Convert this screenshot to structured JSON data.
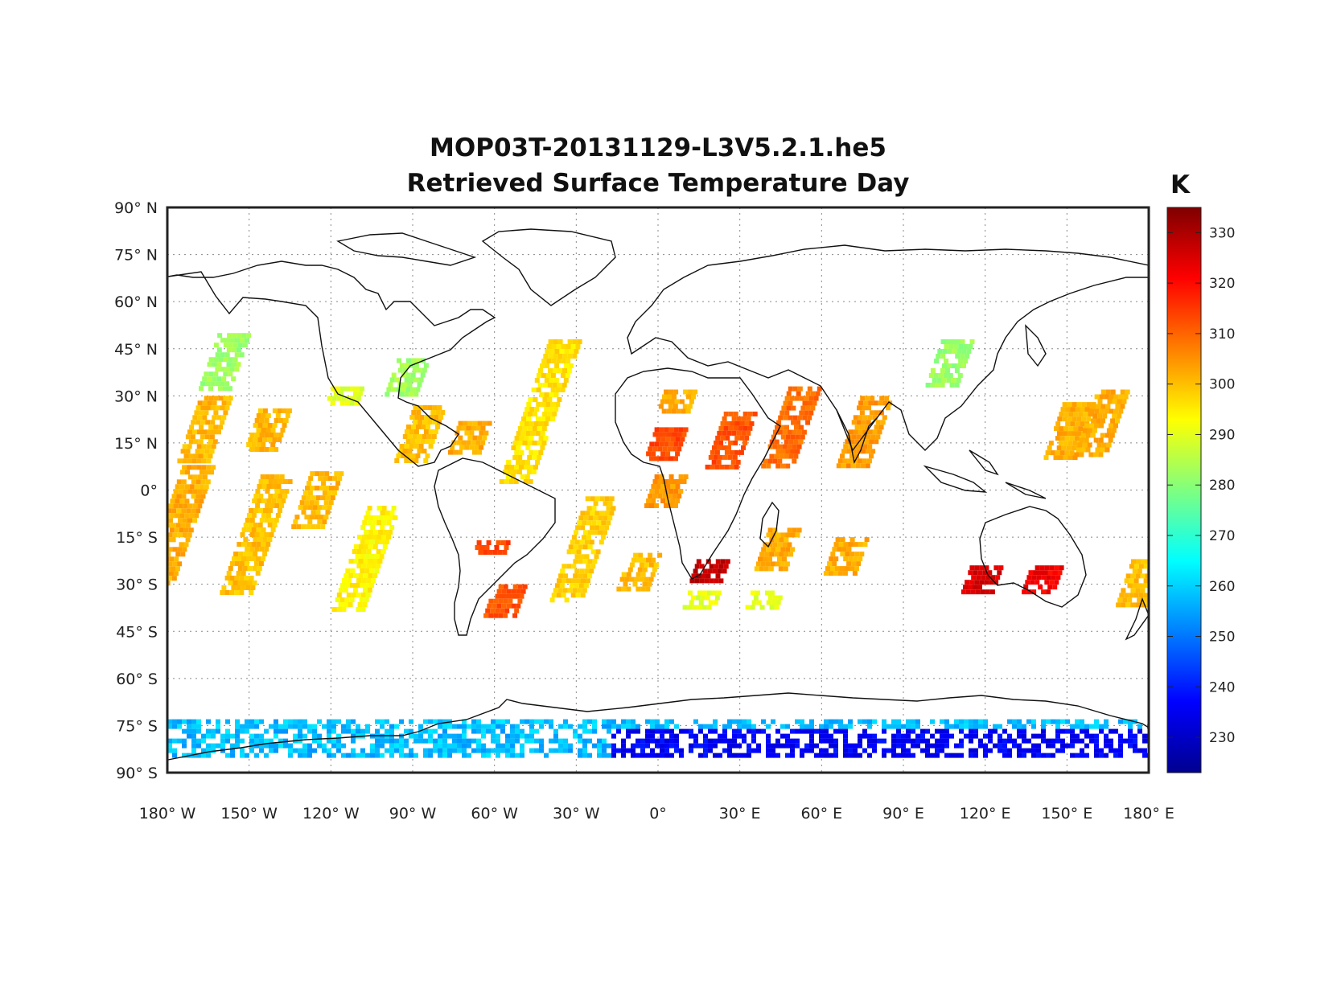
{
  "title": "MOP03T-20131129-L3V5.2.1.he5",
  "subtitle": "Retrieved Surface Temperature Day",
  "colorbar": {
    "unit": "K",
    "min": 223,
    "max": 335,
    "ticks": [
      "230",
      "240",
      "250",
      "260",
      "270",
      "280",
      "290",
      "300",
      "310",
      "320",
      "330"
    ],
    "colormap": "jet"
  },
  "chart_data": {
    "type": "heatmap",
    "projection": "equirectangular",
    "lon_range": [
      -180,
      180
    ],
    "lat_range": [
      -90,
      90
    ],
    "grid": true,
    "x_ticks": [
      {
        "value": -180,
        "label": "180° W"
      },
      {
        "value": -150,
        "label": "150° W"
      },
      {
        "value": -120,
        "label": "120° W"
      },
      {
        "value": -90,
        "label": "90° W"
      },
      {
        "value": -60,
        "label": "60° W"
      },
      {
        "value": -30,
        "label": "30° W"
      },
      {
        "value": 0,
        "label": "0°"
      },
      {
        "value": 30,
        "label": "30° E"
      },
      {
        "value": 60,
        "label": "60° E"
      },
      {
        "value": 90,
        "label": "90° E"
      },
      {
        "value": 120,
        "label": "120° E"
      },
      {
        "value": 150,
        "label": "150° E"
      },
      {
        "value": 180,
        "label": "180° E"
      }
    ],
    "y_ticks": [
      {
        "value": 90,
        "label": "90° N"
      },
      {
        "value": 75,
        "label": "75° N"
      },
      {
        "value": 60,
        "label": "60° N"
      },
      {
        "value": 45,
        "label": "45° N"
      },
      {
        "value": 30,
        "label": "30° N"
      },
      {
        "value": 15,
        "label": "15° N"
      },
      {
        "value": 0,
        "label": "0°"
      },
      {
        "value": -15,
        "label": "15° S"
      },
      {
        "value": -30,
        "label": "30° S"
      },
      {
        "value": -45,
        "label": "45° S"
      },
      {
        "value": -60,
        "label": "60° S"
      },
      {
        "value": -75,
        "label": "75° S"
      },
      {
        "value": -90,
        "label": "90° S"
      }
    ],
    "swaths": [
      {
        "lon": -177,
        "lat0": -30,
        "lat1": 8,
        "temp": 302
      },
      {
        "lon": -167,
        "lat0": 10,
        "lat1": 30,
        "temp": 301
      },
      {
        "lon": -160,
        "lat0": 32,
        "lat1": 50,
        "temp": 282
      },
      {
        "lon": -148,
        "lat0": -32,
        "lat1": 5,
        "temp": 300
      },
      {
        "lon": -144,
        "lat0": 13,
        "lat1": 26,
        "temp": 301
      },
      {
        "lon": -126,
        "lat0": -12,
        "lat1": 6,
        "temp": 301
      },
      {
        "lon": -116,
        "lat0": 27,
        "lat1": 33,
        "temp": 290
      },
      {
        "lon": -108,
        "lat0": -38,
        "lat1": -5,
        "temp": 294
      },
      {
        "lon": -93,
        "lat0": 30,
        "lat1": 42,
        "temp": 283
      },
      {
        "lon": -88,
        "lat0": 10,
        "lat1": 27,
        "temp": 300
      },
      {
        "lon": -70,
        "lat0": 12,
        "lat1": 22,
        "temp": 302
      },
      {
        "lon": -62,
        "lat0": -20,
        "lat1": -16,
        "temp": 314
      },
      {
        "lon": -57,
        "lat0": -40,
        "lat1": -30,
        "temp": 312
      },
      {
        "lon": -44,
        "lat0": 3,
        "lat1": 48,
        "temp": 296
      },
      {
        "lon": -28,
        "lat0": -35,
        "lat1": -2,
        "temp": 298
      },
      {
        "lon": -8,
        "lat0": -32,
        "lat1": -20,
        "temp": 300
      },
      {
        "lon": 2,
        "lat0": 10,
        "lat1": 20,
        "temp": 313
      },
      {
        "lon": 2,
        "lat0": -5,
        "lat1": 5,
        "temp": 304
      },
      {
        "lon": 6,
        "lat0": 25,
        "lat1": 32,
        "temp": 302
      },
      {
        "lon": 18,
        "lat0": -29,
        "lat1": -22,
        "temp": 328
      },
      {
        "lon": 15,
        "lat0": -38,
        "lat1": -32,
        "temp": 290
      },
      {
        "lon": 26,
        "lat0": 8,
        "lat1": 25,
        "temp": 312
      },
      {
        "lon": 48,
        "lat0": 8,
        "lat1": 33,
        "temp": 309
      },
      {
        "lon": 43,
        "lat0": -25,
        "lat1": -12,
        "temp": 302
      },
      {
        "lon": 38,
        "lat0": -38,
        "lat1": -32,
        "temp": 290
      },
      {
        "lon": 75,
        "lat0": 8,
        "lat1": 30,
        "temp": 304
      },
      {
        "lon": 68,
        "lat0": -27,
        "lat1": -15,
        "temp": 302
      },
      {
        "lon": 106,
        "lat0": 33,
        "lat1": 48,
        "temp": 282
      },
      {
        "lon": 118,
        "lat0": -32,
        "lat1": -24,
        "temp": 325
      },
      {
        "lon": 140,
        "lat0": -33,
        "lat1": -24,
        "temp": 322
      },
      {
        "lon": 150,
        "lat0": 10,
        "lat1": 28,
        "temp": 302
      },
      {
        "lon": 162,
        "lat0": 12,
        "lat1": 32,
        "temp": 302
      },
      {
        "lon": 176,
        "lat0": -36,
        "lat1": -22,
        "temp": 300
      }
    ],
    "polar_band": {
      "lat0": -84,
      "lat1": -73,
      "temp_west": 258,
      "temp_east": 236
    }
  }
}
